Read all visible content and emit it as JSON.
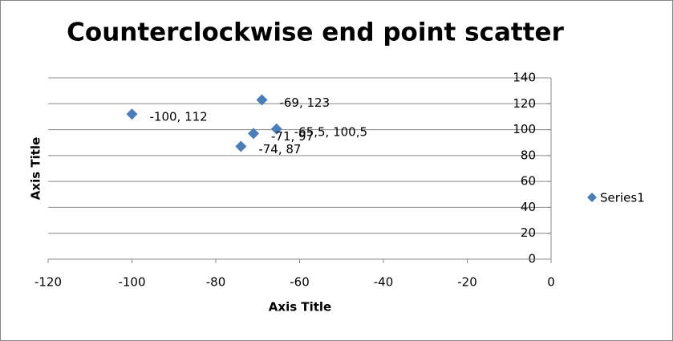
{
  "chart_data": {
    "type": "scatter",
    "title": "Counterclockwise end point scatter",
    "x_label": "Axis Title",
    "y_label": "Axis Title",
    "series": [
      {
        "name": "Series1",
        "color": "#4a7ebb",
        "x": [
          -100,
          -69,
          -65.5,
          -71,
          -74
        ],
        "values": [
          112,
          123,
          100.5,
          97,
          87
        ],
        "value_labels": [
          "-100, 112",
          "-69, 123",
          "-65,5, 100,5",
          "-71, 97",
          "-74, 87"
        ]
      }
    ],
    "xlim": [
      -120,
      0
    ],
    "xticks": [
      -120,
      -100,
      -80,
      -60,
      -40,
      -20,
      0
    ],
    "ylim": [
      0,
      140
    ],
    "yticks": [
      0,
      20,
      40,
      60,
      80,
      100,
      120,
      140
    ],
    "grid": true,
    "legend": "right"
  }
}
